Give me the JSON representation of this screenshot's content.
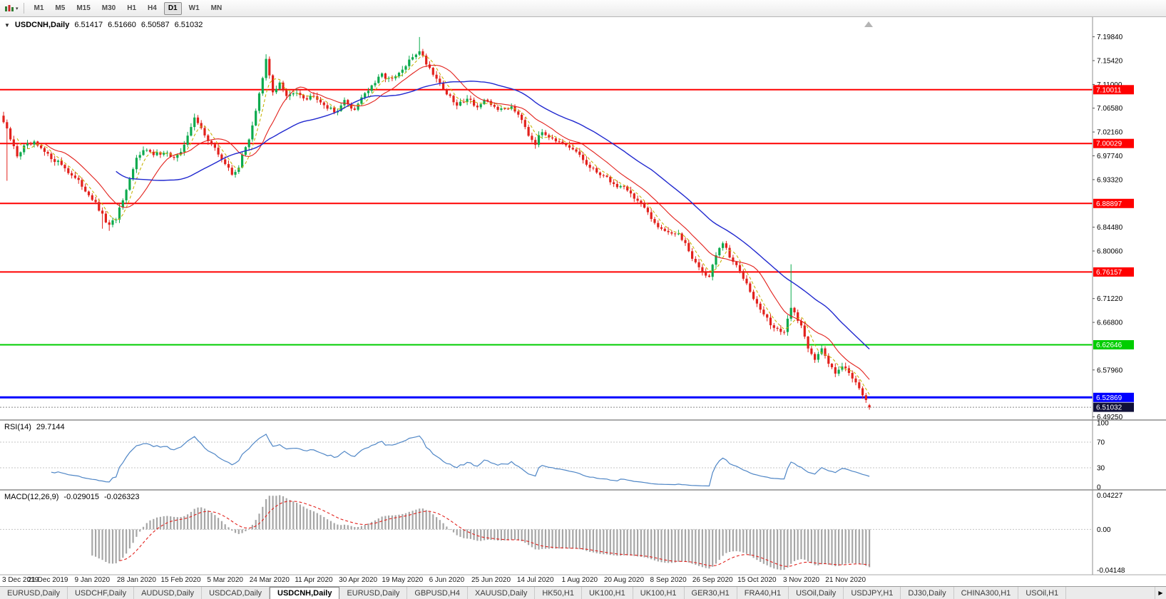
{
  "toolbar": {
    "timeframes": [
      "M1",
      "M5",
      "M15",
      "M30",
      "H1",
      "H4",
      "D1",
      "W1",
      "MN"
    ],
    "active_timeframe": "D1"
  },
  "icons": {
    "collapse": "▼",
    "caret": "▾",
    "scroll_right": "▶"
  },
  "chart": {
    "title": {
      "symbol": "USDCNH,Daily",
      "open": "6.51417",
      "high": "6.51660",
      "low": "6.50587",
      "close": "6.51032"
    }
  },
  "indicators": {
    "rsi": {
      "name": "RSI(14)",
      "value": "29.7144",
      "levels": [
        "100",
        "70",
        "30",
        "0"
      ],
      "dashed_levels": [
        "70",
        "30"
      ]
    },
    "macd": {
      "name": "MACD(12,26,9)",
      "value1": "-0.029015",
      "value2": "-0.026323",
      "axis_max": "0.04227",
      "axis_zero": "0.00",
      "axis_min": "-0.04148"
    }
  },
  "date_axis": [
    "3 Dec 2019",
    "21 Dec 2019",
    "9 Jan 2020",
    "28 Jan 2020",
    "15 Feb 2020",
    "5 Mar 2020",
    "24 Mar 2020",
    "11 Apr 2020",
    "30 Apr 2020",
    "19 May 2020",
    "6 Jun 2020",
    "25 Jun 2020",
    "14 Jul 2020",
    "1 Aug 2020",
    "20 Aug 2020",
    "8 Sep 2020",
    "26 Sep 2020",
    "15 Oct 2020",
    "3 Nov 2020",
    "21 Nov 2020"
  ],
  "tabs": {
    "items": [
      "EURUSD,Daily",
      "USDCHF,Daily",
      "AUDUSD,Daily",
      "USDCAD,Daily",
      "USDCNH,Daily",
      "EURUSD,Daily",
      "GBPUSD,H4",
      "XAUUSD,Daily",
      "HK50,H1",
      "UK100,H1",
      "UK100,H1",
      "GER30,H1",
      "FRA40,H1",
      "USOil,Daily",
      "USDJPY,H1",
      "DJ30,Daily",
      "CHINA300,H1",
      "USOil,H1"
    ],
    "active_index": 4
  },
  "colors": {
    "bull": "#0caa4d",
    "bear": "#e2211c",
    "ma_short": "#c7b40a",
    "ma_fast": "#e2211c",
    "ma_slow": "#2028cf",
    "rsi_line": "#4f86c6",
    "level_line": "#c4c4c4",
    "macd_hist": "#a6a6a6",
    "macd_signal": "#e2211c",
    "separator": "#a9a9a9"
  },
  "chart_data": {
    "type": "candlestick",
    "symbol": "USDCNH",
    "timeframe": "Daily",
    "bars": 255,
    "price_axis_ticks": [
      "7.19840",
      "7.15420",
      "7.11000",
      "7.06580",
      "7.02160",
      "6.97740",
      "6.93320",
      "6.88900",
      "6.84480",
      "6.80060",
      "6.75640",
      "6.71220",
      "6.66800",
      "6.62380",
      "6.57960",
      "6.53540",
      "6.49250"
    ],
    "price_range": {
      "max": 7.235,
      "min": 6.488
    },
    "last_candle": {
      "open": 6.51417,
      "high": 6.5166,
      "low": 6.50587,
      "close": 6.51032
    },
    "close_path": [
      [
        0,
        7.04
      ],
      [
        2,
        7.008
      ],
      [
        4,
        6.978
      ],
      [
        6,
        6.994
      ],
      [
        9,
        7.0
      ],
      [
        13,
        6.978
      ],
      [
        17,
        6.962
      ],
      [
        20,
        6.941
      ],
      [
        23,
        6.922
      ],
      [
        26,
        6.898
      ],
      [
        29,
        6.866
      ],
      [
        31,
        6.846
      ],
      [
        33,
        6.862
      ],
      [
        36,
        6.91
      ],
      [
        39,
        6.972
      ],
      [
        41,
        6.992
      ],
      [
        44,
        6.978
      ],
      [
        47,
        6.986
      ],
      [
        50,
        6.973
      ],
      [
        52,
        6.981
      ],
      [
        54,
        7.018
      ],
      [
        56,
        7.046
      ],
      [
        58,
        7.028
      ],
      [
        61,
        6.998
      ],
      [
        64,
        6.972
      ],
      [
        67,
        6.943
      ],
      [
        69,
        6.958
      ],
      [
        72,
        7.01
      ],
      [
        74,
        7.062
      ],
      [
        76,
        7.12
      ],
      [
        77,
        7.155
      ],
      [
        79,
        7.096
      ],
      [
        81,
        7.112
      ],
      [
        83,
        7.086
      ],
      [
        86,
        7.098
      ],
      [
        89,
        7.083
      ],
      [
        91,
        7.092
      ],
      [
        94,
        7.073
      ],
      [
        97,
        7.058
      ],
      [
        100,
        7.078
      ],
      [
        103,
        7.063
      ],
      [
        105,
        7.088
      ],
      [
        108,
        7.105
      ],
      [
        111,
        7.128
      ],
      [
        114,
        7.118
      ],
      [
        117,
        7.136
      ],
      [
        120,
        7.161
      ],
      [
        122,
        7.174
      ],
      [
        124,
        7.15
      ],
      [
        127,
        7.122
      ],
      [
        130,
        7.093
      ],
      [
        133,
        7.07
      ],
      [
        136,
        7.086
      ],
      [
        139,
        7.068
      ],
      [
        141,
        7.078
      ],
      [
        143,
        7.072
      ],
      [
        146,
        7.062
      ],
      [
        149,
        7.07
      ],
      [
        152,
        7.048
      ],
      [
        154,
        7.018
      ],
      [
        156,
        7.001
      ],
      [
        158,
        7.022
      ],
      [
        161,
        7.012
      ],
      [
        164,
        6.996
      ],
      [
        167,
        6.988
      ],
      [
        169,
        6.979
      ],
      [
        172,
        6.953
      ],
      [
        175,
        6.945
      ],
      [
        178,
        6.931
      ],
      [
        180,
        6.919
      ],
      [
        182,
        6.923
      ],
      [
        184,
        6.906
      ],
      [
        187,
        6.888
      ],
      [
        190,
        6.859
      ],
      [
        193,
        6.843
      ],
      [
        195,
        6.837
      ],
      [
        198,
        6.829
      ],
      [
        200,
        6.816
      ],
      [
        202,
        6.789
      ],
      [
        205,
        6.761
      ],
      [
        207,
        6.753
      ],
      [
        209,
        6.792
      ],
      [
        211,
        6.816
      ],
      [
        213,
        6.789
      ],
      [
        215,
        6.772
      ],
      [
        218,
        6.743
      ],
      [
        221,
        6.701
      ],
      [
        223,
        6.683
      ],
      [
        225,
        6.664
      ],
      [
        227,
        6.656
      ],
      [
        229,
        6.646
      ],
      [
        231,
        6.698
      ],
      [
        233,
        6.673
      ],
      [
        234,
        6.661
      ],
      [
        236,
        6.623
      ],
      [
        238,
        6.601
      ],
      [
        240,
        6.617
      ],
      [
        242,
        6.591
      ],
      [
        244,
        6.577
      ],
      [
        246,
        6.589
      ],
      [
        248,
        6.573
      ],
      [
        250,
        6.559
      ],
      [
        252,
        6.536
      ],
      [
        253,
        6.523
      ],
      [
        254,
        6.51
      ]
    ],
    "wick_overrides": {
      "1": {
        "low": 6.931
      },
      "29": {
        "low": 6.842
      },
      "31": {
        "low": 6.838
      },
      "77": {
        "high": 7.166
      },
      "122": {
        "high": 7.198
      },
      "231": {
        "high": 6.776
      }
    },
    "hlines": [
      {
        "price": 7.10011,
        "label": "7.10011",
        "color": "#ff0000",
        "width": 2
      },
      {
        "price": 7.00029,
        "label": "7.00029",
        "color": "#ff0000",
        "width": 2
      },
      {
        "price": 6.88897,
        "label": "6.88897",
        "color": "#ff0000",
        "width": 2
      },
      {
        "price": 6.76157,
        "label": "6.76157",
        "color": "#ff0000",
        "width": 2
      },
      {
        "price": 6.62646,
        "label": "6.62646",
        "color": "#00ce00",
        "width": 2
      },
      {
        "price": 6.52869,
        "label": "6.52869",
        "color": "#0000ff",
        "width": 3
      },
      {
        "price": 6.51032,
        "label": "6.51032",
        "color": "#888888",
        "width": 1,
        "style": "dotted",
        "label_bg": "#10103a"
      }
    ],
    "moving_averages": [
      {
        "period": 5,
        "style": "dashed",
        "color_key": "ma_short"
      },
      {
        "period": 13,
        "style": "solid",
        "color_key": "ma_fast"
      },
      {
        "period": 34,
        "style": "solid",
        "color_key": "ma_slow"
      }
    ]
  }
}
